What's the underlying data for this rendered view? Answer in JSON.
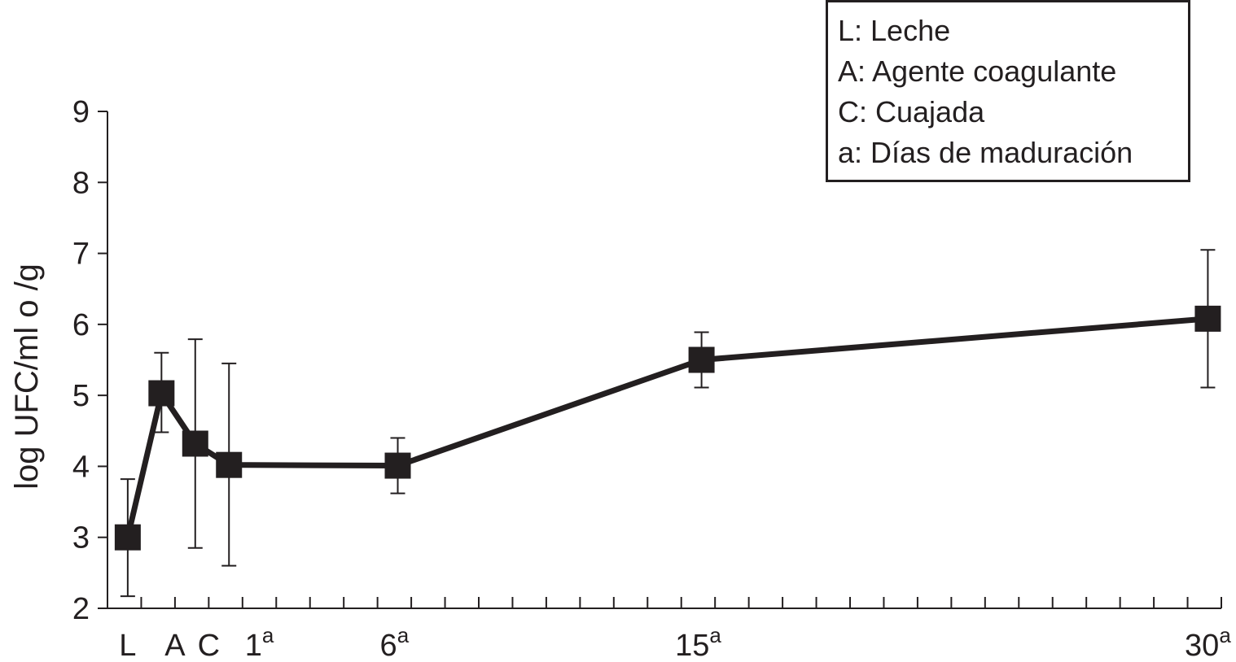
{
  "chart_data": {
    "type": "line",
    "ylabel": "log UFC/ml o /g",
    "xlabel": "",
    "ylim": [
      2,
      9
    ],
    "yticks": [
      2,
      3,
      4,
      5,
      6,
      7,
      8,
      9
    ],
    "x_axis_slots": 33,
    "x_tick_labels": [
      {
        "slot": 0.6,
        "base": "L",
        "sup": ""
      },
      {
        "slot": 2.0,
        "base": "A",
        "sup": ""
      },
      {
        "slot": 3.0,
        "base": "C",
        "sup": ""
      },
      {
        "slot": 4.5,
        "base": "1",
        "sup": "a"
      },
      {
        "slot": 8.5,
        "base": "6",
        "sup": "a"
      },
      {
        "slot": 17.5,
        "base": "15",
        "sup": "a"
      },
      {
        "slot": 32.6,
        "base": "30",
        "sup": "a"
      }
    ],
    "series": [
      {
        "name": "",
        "points": [
          {
            "label": "L",
            "slot": 0.6,
            "y": 3.0,
            "err_low": 2.17,
            "err_high": 3.82
          },
          {
            "label": "A",
            "slot": 1.6,
            "y": 5.03,
            "err_low": 4.48,
            "err_high": 5.6
          },
          {
            "label": "",
            "slot": 2.6,
            "y": 4.32,
            "err_low": 2.85,
            "err_high": 5.79
          },
          {
            "label": "C",
            "slot": 3.6,
            "y": 4.02,
            "err_low": 2.6,
            "err_high": 5.45
          },
          {
            "label": "6a",
            "slot": 8.6,
            "y": 4.01,
            "err_low": 3.62,
            "err_high": 4.4
          },
          {
            "label": "15a",
            "slot": 17.6,
            "y": 5.5,
            "err_low": 5.11,
            "err_high": 5.89
          },
          {
            "label": "30a",
            "slot": 32.6,
            "y": 6.08,
            "err_low": 5.11,
            "err_high": 7.05
          }
        ]
      }
    ],
    "legend": {
      "position": "top-right",
      "items": [
        "L: Leche",
        "A: Agente coagulante",
        "C: Cuajada",
        "a: Días de maduración"
      ]
    },
    "grid": false
  }
}
